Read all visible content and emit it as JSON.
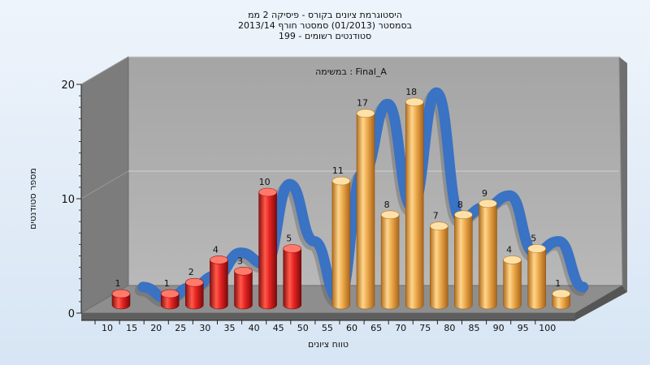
{
  "chart_data": {
    "type": "bar",
    "title_lines": [
      "היסטוגרמת ציונים בקורס - פיסיקה 2 ממ",
      "בסמסטר  (01/2013)  סמסטר חורף 2013/14",
      "סטודנטים רשומים - 199"
    ],
    "subtitle": "במשימה : Final_A",
    "ylabel": "מספר סטודנטים",
    "xlabel": "טווח ציונים",
    "ylim": [
      0,
      20
    ],
    "y_ticks": [
      0,
      10,
      20
    ],
    "x_ticks": [
      10,
      15,
      20,
      25,
      30,
      35,
      40,
      45,
      50,
      55,
      60,
      65,
      70,
      75,
      80,
      85,
      90,
      95,
      100
    ],
    "categories": [
      10,
      15,
      20,
      25,
      30,
      35,
      40,
      45,
      50,
      55,
      60,
      65,
      70,
      75,
      80,
      85,
      90,
      95,
      100
    ],
    "values": [
      1,
      0,
      1,
      2,
      4,
      3,
      10,
      5,
      0,
      11,
      17,
      8,
      18,
      7,
      8,
      9,
      4,
      5,
      1
    ],
    "fail_threshold": 50,
    "colors": {
      "fail": "#e52222",
      "pass": "#eba84a",
      "curve": "#3a72c4",
      "wall": "#9b9b9b",
      "left_wall": "#7a7a7a",
      "floor": "#8a8a8a"
    },
    "grid": true,
    "legend": "none"
  }
}
